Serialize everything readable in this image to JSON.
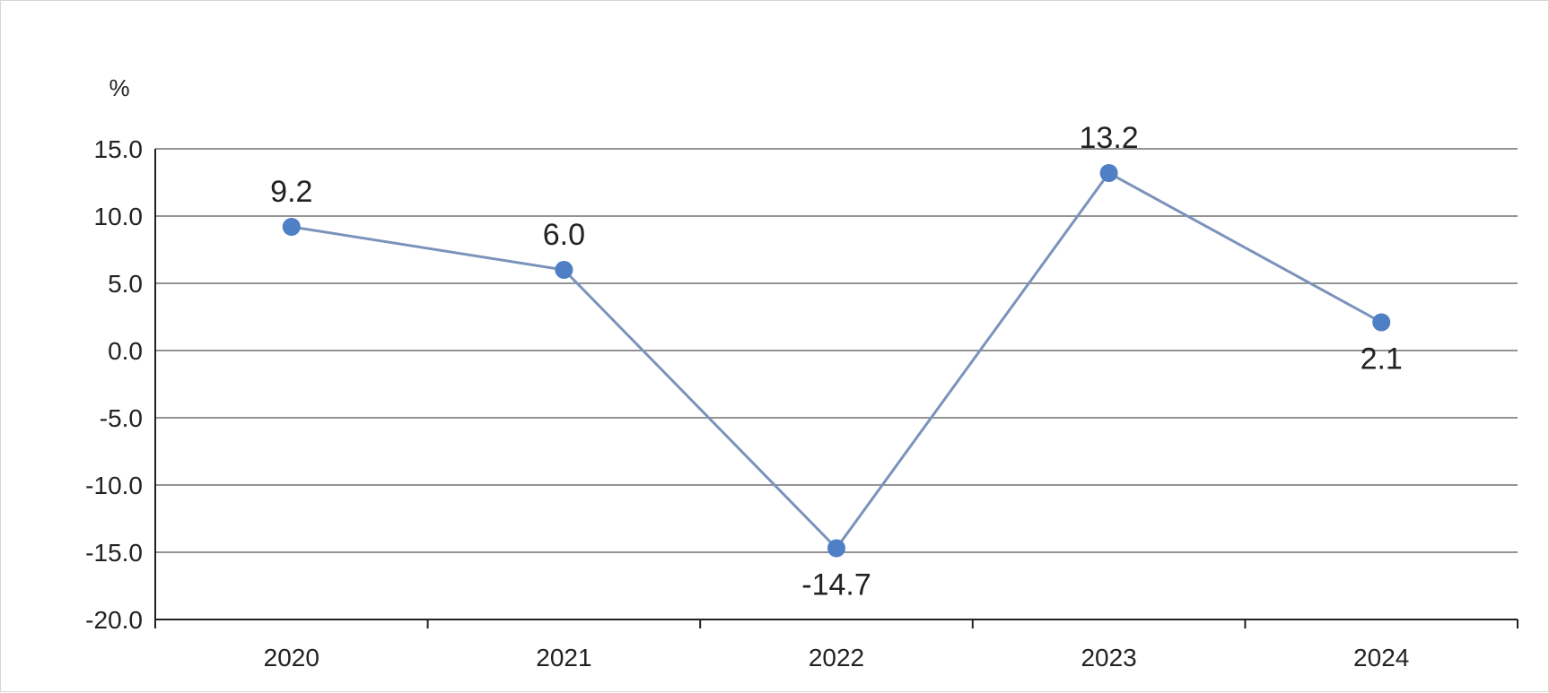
{
  "chart_data": {
    "type": "line",
    "categories": [
      "2020",
      "2021",
      "2022",
      "2023",
      "2024"
    ],
    "series": [
      {
        "values": [
          9.2,
          6.0,
          -14.7,
          13.2,
          2.1
        ]
      }
    ],
    "data_labels": [
      "9.2",
      "6.0",
      "-14.7",
      "13.2",
      "2.1"
    ],
    "y_unit": "%",
    "y_ticks": [
      "15.0",
      "10.0",
      "5.0",
      "0.0",
      "-5.0",
      "-10.0",
      "-15.0",
      "-20.0"
    ],
    "ylim": [
      -20,
      15
    ],
    "y_step": 5,
    "grid": true,
    "legend": "none",
    "colors": {
      "line": "#7b93bb",
      "marker": "#4f7fc4",
      "grid": "#707070",
      "axis": "#222222"
    }
  }
}
